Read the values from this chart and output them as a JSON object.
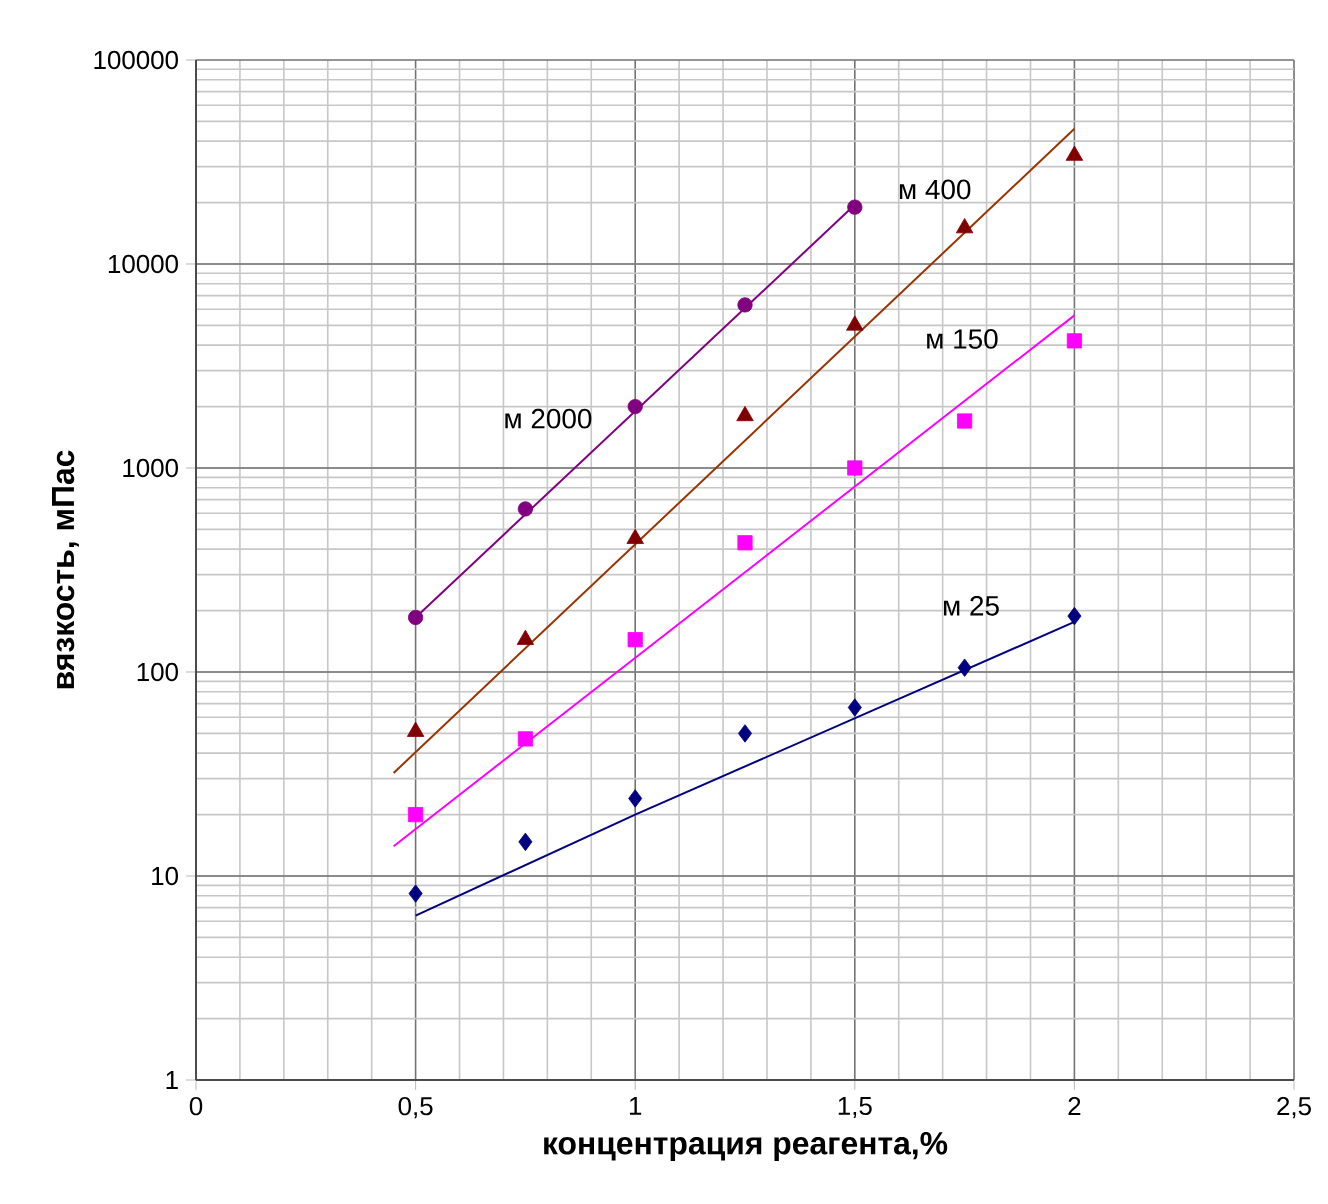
{
  "chart_data": {
    "type": "scatter",
    "xlabel": "концентрация реагента,%",
    "ylabel": "вязкость,  мПас",
    "xlim": [
      0,
      2.5
    ],
    "ylim": [
      1,
      100000
    ],
    "log": "y",
    "grid": true,
    "xticks": [
      0,
      {
        "value": 0.5,
        "label": "0,5"
      },
      1,
      {
        "value": 1.5,
        "label": "1,5"
      },
      2,
      {
        "value": 2.5,
        "label": "2,5"
      }
    ],
    "yticks": [
      1,
      10,
      100,
      1000,
      10000,
      100000
    ],
    "series": [
      {
        "marker": "circle",
        "color": "#800080",
        "x": [
          0.5,
          0.75,
          1.0,
          1.25,
          1.5
        ],
        "values": [
          185,
          630,
          2000,
          6300,
          19000
        ]
      },
      {
        "marker": "triangle",
        "color": "#800000",
        "x": [
          0.5,
          0.75,
          1.0,
          1.25,
          1.5,
          1.75,
          2.0
        ],
        "values": [
          51,
          144,
          450,
          1800,
          5000,
          15000,
          34000
        ]
      },
      {
        "marker": "square",
        "color": "#ff00ff",
        "x": [
          0.5,
          0.75,
          1.0,
          1.25,
          1.5,
          1.75,
          2.0
        ],
        "values": [
          20,
          47,
          144,
          430,
          1000,
          1700,
          4200
        ]
      },
      {
        "marker": "diamond",
        "color": "#000080",
        "x": [
          0.5,
          0.75,
          1.0,
          1.25,
          1.5,
          1.75,
          2.0
        ],
        "values": [
          8.2,
          14.7,
          24,
          50,
          67,
          105,
          188
        ]
      },
      {
        "type": "line",
        "name": "м 2000",
        "color": "#800080",
        "x": [
          0.5,
          1.5
        ],
        "values": [
          185,
          19500
        ]
      },
      {
        "type": "line",
        "name": "м 400",
        "color": "#993300",
        "x": [
          0.45,
          2.0
        ],
        "values": [
          32,
          46000
        ]
      },
      {
        "type": "line",
        "name": "м 150",
        "color": "#ff00ff",
        "x": [
          0.45,
          2.0
        ],
        "values": [
          14,
          5600
        ]
      },
      {
        "type": "line",
        "name": "м 25",
        "color": "#000080",
        "x": [
          0.5,
          1.0,
          2.0
        ],
        "values": [
          6.4,
          20,
          176
        ]
      }
    ]
  }
}
